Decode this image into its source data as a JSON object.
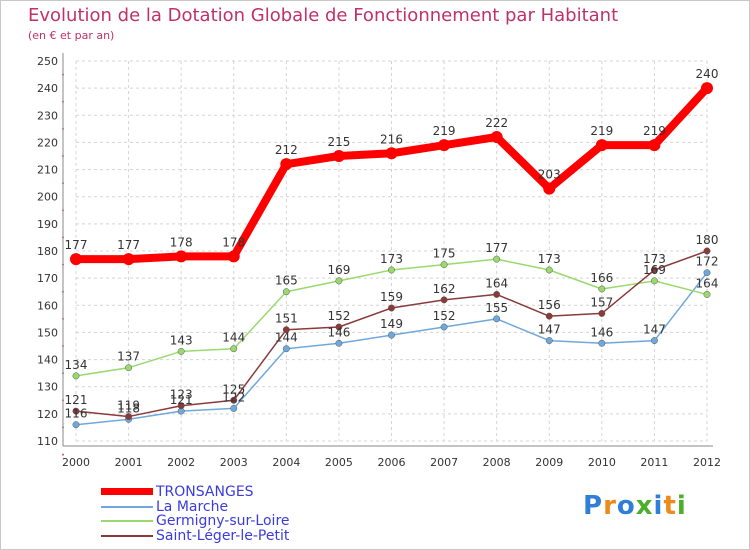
{
  "chart_data": {
    "type": "line",
    "title": "Evolution de la Dotation Globale de Fonctionnement par Habitant",
    "subtitle": "(en € et par an)",
    "x": [
      "2000",
      "2001",
      "2002",
      "2003",
      "2004",
      "2005",
      "2006",
      "2007",
      "2008",
      "2009",
      "2010",
      "2011",
      "2012"
    ],
    "ylim": [
      110,
      250
    ],
    "yticks": [
      110,
      120,
      130,
      140,
      150,
      160,
      170,
      180,
      190,
      200,
      210,
      220,
      230,
      240,
      250
    ],
    "grid": true,
    "legend_position": "bottom-left",
    "series": [
      {
        "name": "TRONSANGES",
        "color": "#ff0000",
        "values": [
          177,
          177,
          178,
          178,
          212,
          215,
          216,
          219,
          222,
          203,
          219,
          219,
          240
        ]
      },
      {
        "name": "La Marche",
        "color": "#6fa8dc",
        "values": [
          116,
          118,
          121,
          122,
          144,
          146,
          149,
          152,
          155,
          147,
          146,
          147,
          172
        ]
      },
      {
        "name": "Germigny-sur-Loire",
        "color": "#9ad96e",
        "values": [
          134,
          137,
          143,
          144,
          165,
          169,
          173,
          175,
          177,
          173,
          166,
          169,
          164
        ]
      },
      {
        "name": "Saint-Léger-le-Petit",
        "color": "#8b3a3a",
        "values": [
          121,
          119,
          123,
          125,
          151,
          152,
          159,
          162,
          164,
          156,
          157,
          173,
          180
        ]
      }
    ]
  },
  "brand": {
    "name": "Proxiti",
    "letters": [
      "P",
      "r",
      "o",
      "x",
      "i",
      "t",
      "i"
    ]
  }
}
